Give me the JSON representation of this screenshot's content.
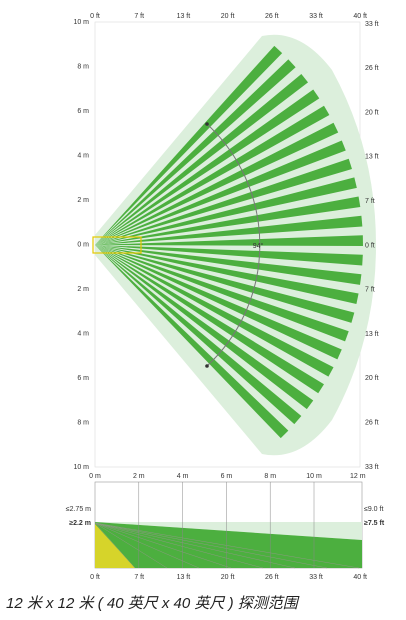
{
  "top_view": {
    "top_axis": [
      "0 ft",
      "7 ft",
      "13 ft",
      "20 ft",
      "26 ft",
      "33 ft",
      "40 ft"
    ],
    "left_axis": [
      "10 m",
      "8 m",
      "6 m",
      "4 m",
      "2 m",
      "0 m",
      "2 m",
      "4 m",
      "6 m",
      "8 m",
      "10 m"
    ],
    "right_axis": [
      "33 ft",
      "26 ft",
      "20 ft",
      "13 ft",
      "7 ft",
      "0 ft",
      "7 ft",
      "13 ft",
      "20 ft",
      "26 ft",
      "33 ft"
    ],
    "angle_label": "94°"
  },
  "side_view": {
    "top_axis": [
      "0 m",
      "2 m",
      "4 m",
      "6 m",
      "8 m",
      "10 m",
      "12 m"
    ],
    "bottom_axis": [
      "0 ft",
      "7 ft",
      "13 ft",
      "20 ft",
      "26 ft",
      "33 ft",
      "40 ft"
    ],
    "left_labels": [
      "≤2.75 m",
      "≥2.2 m"
    ],
    "right_labels": [
      "≤9.0 ft",
      "≥7.5 ft"
    ]
  },
  "caption": "12 米 x 12 米 ( 40 英尺 x 40 英尺 ) 探测范围"
}
